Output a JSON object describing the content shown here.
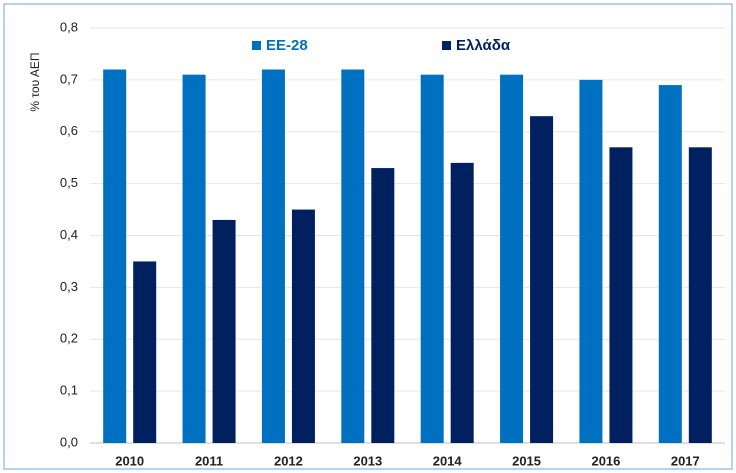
{
  "chart_data": {
    "type": "bar",
    "y_label": "% του ΑΕΠ",
    "categories": [
      "2010",
      "2011",
      "2012",
      "2013",
      "2014",
      "2015",
      "2016",
      "2017"
    ],
    "series": [
      {
        "name": "ΕΕ-28",
        "color": "#0070c0",
        "values": [
          0.72,
          0.71,
          0.72,
          0.72,
          0.71,
          0.71,
          0.7,
          0.69
        ]
      },
      {
        "name": "Ελλάδα",
        "color": "#002060",
        "values": [
          0.35,
          0.43,
          0.45,
          0.53,
          0.54,
          0.63,
          0.57,
          0.57
        ]
      }
    ],
    "ylim": [
      0,
      0.8
    ],
    "yticks": [
      {
        "value": 0,
        "label": "0,0"
      },
      {
        "value": 0.1,
        "label": "0,1"
      },
      {
        "value": 0.2,
        "label": "0,2"
      },
      {
        "value": 0.3,
        "label": "0,3"
      },
      {
        "value": 0.4,
        "label": "0,4"
      },
      {
        "value": 0.5,
        "label": "0,5"
      },
      {
        "value": 0.6,
        "label": "0,6"
      },
      {
        "value": 0.7,
        "label": "0,7"
      },
      {
        "value": 0.8,
        "label": "0,8"
      }
    ],
    "grid": true,
    "legend": "top"
  }
}
